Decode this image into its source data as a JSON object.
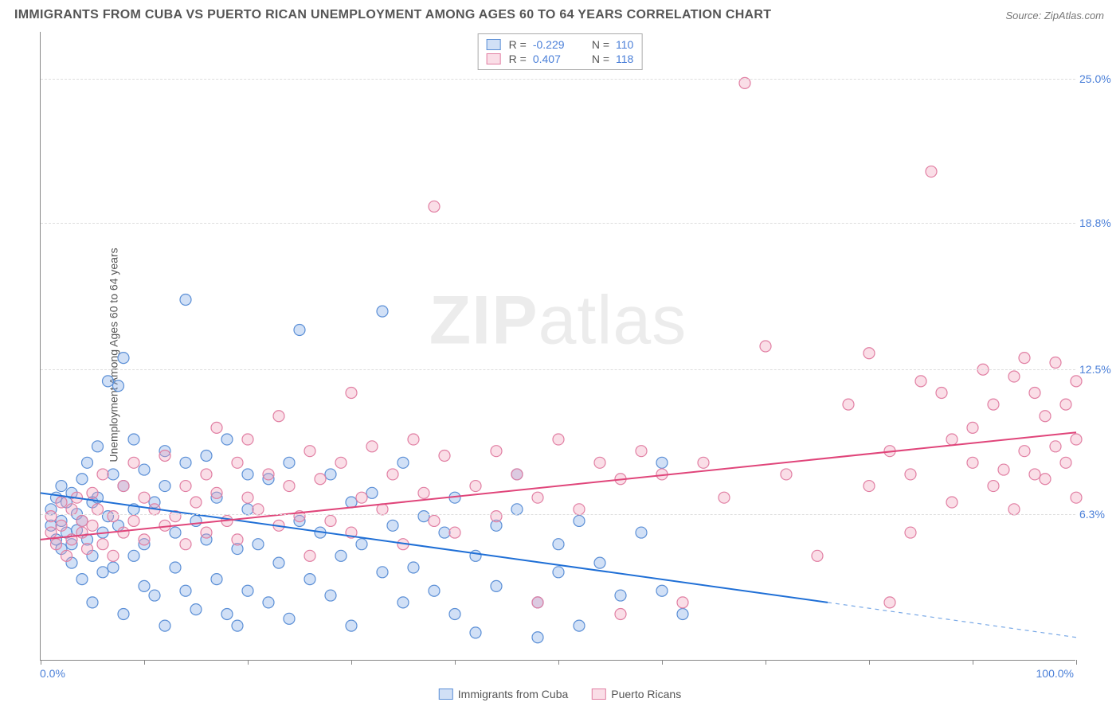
{
  "title": "IMMIGRANTS FROM CUBA VS PUERTO RICAN UNEMPLOYMENT AMONG AGES 60 TO 64 YEARS CORRELATION CHART",
  "source": "Source: ZipAtlas.com",
  "y_axis_label": "Unemployment Among Ages 60 to 64 years",
  "watermark_zip": "ZIP",
  "watermark_atlas": "atlas",
  "chart": {
    "type": "scatter",
    "xlim": [
      0,
      100
    ],
    "ylim": [
      0,
      27
    ],
    "x_tick_positions": [
      0,
      10,
      20,
      30,
      40,
      50,
      60,
      70,
      80,
      90,
      100
    ],
    "x_tick_labels": {
      "left": "0.0%",
      "right": "100.0%"
    },
    "y_ticks": [
      {
        "value": 6.3,
        "label": "6.3%"
      },
      {
        "value": 12.5,
        "label": "12.5%"
      },
      {
        "value": 18.8,
        "label": "18.8%"
      },
      {
        "value": 25.0,
        "label": "25.0%"
      }
    ],
    "background_color": "#ffffff",
    "grid_color": "#dddddd",
    "axis_color": "#888888",
    "marker_radius": 7,
    "marker_stroke_width": 1.2,
    "line_width": 2,
    "series": [
      {
        "name": "Immigrants from Cuba",
        "fill_color": "rgba(122,167,229,0.35)",
        "stroke_color": "#5b8fd6",
        "line_color": "#1f6fd6",
        "r_value": "-0.229",
        "n_value": "110",
        "trend": {
          "x1": 0,
          "y1": 7.2,
          "x2": 76,
          "y2": 2.5,
          "dashed_x2": 100,
          "dashed_y2": 1.0
        },
        "points": [
          [
            1,
            5.8
          ],
          [
            1,
            6.5
          ],
          [
            1.5,
            5.2
          ],
          [
            1.5,
            7.0
          ],
          [
            2,
            6.0
          ],
          [
            2,
            4.8
          ],
          [
            2,
            7.5
          ],
          [
            2.5,
            5.5
          ],
          [
            2.5,
            6.8
          ],
          [
            3,
            5.0
          ],
          [
            3,
            7.2
          ],
          [
            3,
            4.2
          ],
          [
            3.5,
            6.3
          ],
          [
            3.5,
            5.6
          ],
          [
            4,
            7.8
          ],
          [
            4,
            3.5
          ],
          [
            4,
            6.0
          ],
          [
            4.5,
            5.2
          ],
          [
            4.5,
            8.5
          ],
          [
            5,
            4.5
          ],
          [
            5,
            6.8
          ],
          [
            5,
            2.5
          ],
          [
            5.5,
            7.0
          ],
          [
            5.5,
            9.2
          ],
          [
            6,
            5.5
          ],
          [
            6,
            3.8
          ],
          [
            6.5,
            6.2
          ],
          [
            6.5,
            12.0
          ],
          [
            7,
            8.0
          ],
          [
            7,
            4.0
          ],
          [
            7.5,
            5.8
          ],
          [
            7.5,
            11.8
          ],
          [
            8,
            7.5
          ],
          [
            8,
            2.0
          ],
          [
            8,
            13.0
          ],
          [
            9,
            6.5
          ],
          [
            9,
            4.5
          ],
          [
            9,
            9.5
          ],
          [
            10,
            5.0
          ],
          [
            10,
            8.2
          ],
          [
            10,
            3.2
          ],
          [
            11,
            6.8
          ],
          [
            11,
            2.8
          ],
          [
            12,
            7.5
          ],
          [
            12,
            1.5
          ],
          [
            12,
            9.0
          ],
          [
            13,
            5.5
          ],
          [
            13,
            4.0
          ],
          [
            14,
            8.5
          ],
          [
            14,
            3.0
          ],
          [
            14,
            15.5
          ],
          [
            15,
            6.0
          ],
          [
            15,
            2.2
          ],
          [
            16,
            8.8
          ],
          [
            16,
            5.2
          ],
          [
            17,
            3.5
          ],
          [
            17,
            7.0
          ],
          [
            18,
            2.0
          ],
          [
            18,
            9.5
          ],
          [
            19,
            4.8
          ],
          [
            19,
            1.5
          ],
          [
            20,
            6.5
          ],
          [
            20,
            8.0
          ],
          [
            20,
            3.0
          ],
          [
            21,
            5.0
          ],
          [
            22,
            7.8
          ],
          [
            22,
            2.5
          ],
          [
            23,
            4.2
          ],
          [
            24,
            8.5
          ],
          [
            24,
            1.8
          ],
          [
            25,
            6.0
          ],
          [
            25,
            14.2
          ],
          [
            26,
            3.5
          ],
          [
            27,
            5.5
          ],
          [
            28,
            8.0
          ],
          [
            28,
            2.8
          ],
          [
            29,
            4.5
          ],
          [
            30,
            6.8
          ],
          [
            30,
            1.5
          ],
          [
            31,
            5.0
          ],
          [
            32,
            7.2
          ],
          [
            33,
            3.8
          ],
          [
            33,
            15.0
          ],
          [
            34,
            5.8
          ],
          [
            35,
            2.5
          ],
          [
            35,
            8.5
          ],
          [
            36,
            4.0
          ],
          [
            37,
            6.2
          ],
          [
            38,
            3.0
          ],
          [
            39,
            5.5
          ],
          [
            40,
            7.0
          ],
          [
            40,
            2.0
          ],
          [
            42,
            4.5
          ],
          [
            42,
            1.2
          ],
          [
            44,
            5.8
          ],
          [
            44,
            3.2
          ],
          [
            46,
            6.5
          ],
          [
            46,
            8.0
          ],
          [
            48,
            2.5
          ],
          [
            48,
            1.0
          ],
          [
            50,
            5.0
          ],
          [
            50,
            3.8
          ],
          [
            52,
            6.0
          ],
          [
            52,
            1.5
          ],
          [
            54,
            4.2
          ],
          [
            56,
            2.8
          ],
          [
            58,
            5.5
          ],
          [
            60,
            3.0
          ],
          [
            60,
            8.5
          ],
          [
            62,
            2.0
          ]
        ]
      },
      {
        "name": "Puerto Ricans",
        "fill_color": "rgba(240,160,185,0.35)",
        "stroke_color": "#e17fa3",
        "line_color": "#e0457a",
        "r_value": "0.407",
        "n_value": "118",
        "trend": {
          "x1": 0,
          "y1": 5.2,
          "x2": 100,
          "y2": 9.8
        },
        "points": [
          [
            1,
            5.5
          ],
          [
            1,
            6.2
          ],
          [
            1.5,
            5.0
          ],
          [
            2,
            6.8
          ],
          [
            2,
            5.8
          ],
          [
            2.5,
            4.5
          ],
          [
            3,
            6.5
          ],
          [
            3,
            5.2
          ],
          [
            3.5,
            7.0
          ],
          [
            4,
            5.5
          ],
          [
            4,
            6.0
          ],
          [
            4.5,
            4.8
          ],
          [
            5,
            7.2
          ],
          [
            5,
            5.8
          ],
          [
            5.5,
            6.5
          ],
          [
            6,
            5.0
          ],
          [
            6,
            8.0
          ],
          [
            7,
            6.2
          ],
          [
            7,
            4.5
          ],
          [
            8,
            7.5
          ],
          [
            8,
            5.5
          ],
          [
            9,
            6.0
          ],
          [
            9,
            8.5
          ],
          [
            10,
            5.2
          ],
          [
            10,
            7.0
          ],
          [
            11,
            6.5
          ],
          [
            12,
            5.8
          ],
          [
            12,
            8.8
          ],
          [
            13,
            6.2
          ],
          [
            14,
            7.5
          ],
          [
            14,
            5.0
          ],
          [
            15,
            6.8
          ],
          [
            16,
            8.0
          ],
          [
            16,
            5.5
          ],
          [
            17,
            7.2
          ],
          [
            17,
            10.0
          ],
          [
            18,
            6.0
          ],
          [
            19,
            8.5
          ],
          [
            19,
            5.2
          ],
          [
            20,
            7.0
          ],
          [
            20,
            9.5
          ],
          [
            21,
            6.5
          ],
          [
            22,
            8.0
          ],
          [
            23,
            5.8
          ],
          [
            23,
            10.5
          ],
          [
            24,
            7.5
          ],
          [
            25,
            6.2
          ],
          [
            26,
            9.0
          ],
          [
            26,
            4.5
          ],
          [
            27,
            7.8
          ],
          [
            28,
            6.0
          ],
          [
            29,
            8.5
          ],
          [
            30,
            5.5
          ],
          [
            30,
            11.5
          ],
          [
            31,
            7.0
          ],
          [
            32,
            9.2
          ],
          [
            33,
            6.5
          ],
          [
            34,
            8.0
          ],
          [
            35,
            5.0
          ],
          [
            36,
            9.5
          ],
          [
            37,
            7.2
          ],
          [
            38,
            6.0
          ],
          [
            38,
            19.5
          ],
          [
            39,
            8.8
          ],
          [
            40,
            5.5
          ],
          [
            42,
            7.5
          ],
          [
            44,
            9.0
          ],
          [
            44,
            6.2
          ],
          [
            46,
            8.0
          ],
          [
            48,
            7.0
          ],
          [
            48,
            2.5
          ],
          [
            50,
            9.5
          ],
          [
            52,
            6.5
          ],
          [
            54,
            8.5
          ],
          [
            56,
            7.8
          ],
          [
            56,
            2.0
          ],
          [
            58,
            9.0
          ],
          [
            60,
            8.0
          ],
          [
            62,
            2.5
          ],
          [
            64,
            8.5
          ],
          [
            66,
            7.0
          ],
          [
            68,
            24.8
          ],
          [
            70,
            13.5
          ],
          [
            72,
            8.0
          ],
          [
            75,
            4.5
          ],
          [
            78,
            11.0
          ],
          [
            80,
            7.5
          ],
          [
            80,
            13.2
          ],
          [
            82,
            9.0
          ],
          [
            82,
            2.5
          ],
          [
            84,
            8.0
          ],
          [
            84,
            5.5
          ],
          [
            85,
            12.0
          ],
          [
            86,
            21.0
          ],
          [
            87,
            11.5
          ],
          [
            88,
            9.5
          ],
          [
            88,
            6.8
          ],
          [
            90,
            10.0
          ],
          [
            90,
            8.5
          ],
          [
            91,
            12.5
          ],
          [
            92,
            7.5
          ],
          [
            92,
            11.0
          ],
          [
            93,
            8.2
          ],
          [
            94,
            6.5
          ],
          [
            94,
            12.2
          ],
          [
            95,
            9.0
          ],
          [
            95,
            13.0
          ],
          [
            96,
            8.0
          ],
          [
            96,
            11.5
          ],
          [
            97,
            10.5
          ],
          [
            97,
            7.8
          ],
          [
            98,
            9.2
          ],
          [
            98,
            12.8
          ],
          [
            99,
            8.5
          ],
          [
            99,
            11.0
          ],
          [
            100,
            9.5
          ],
          [
            100,
            7.0
          ],
          [
            100,
            12.0
          ]
        ]
      }
    ]
  },
  "legend_bottom": [
    {
      "label": "Immigrants from Cuba",
      "series": 0
    },
    {
      "label": "Puerto Ricans",
      "series": 1
    }
  ],
  "legend_top_labels": {
    "r": "R =",
    "n": "N ="
  }
}
